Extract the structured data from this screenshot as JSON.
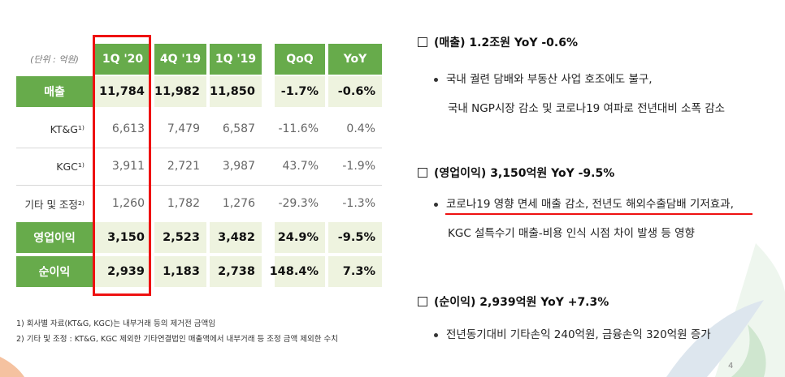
{
  "table": {
    "unit_label": "(단위 : 억원)",
    "headers": [
      "1Q '20",
      "4Q '19",
      "1Q '19",
      "QoQ",
      "YoY"
    ],
    "rows": [
      {
        "label": "매출",
        "values": [
          "11,784",
          "11,982",
          "11,850",
          "-1.7%",
          "-0.6%"
        ]
      },
      {
        "label": "KT&G¹⁾",
        "values": [
          "6,613",
          "7,479",
          "6,587",
          "-11.6%",
          "0.4%"
        ]
      },
      {
        "label": "KGC¹⁾",
        "values": [
          "3,911",
          "2,721",
          "3,987",
          "43.7%",
          "-1.9%"
        ]
      },
      {
        "label": "기타 및 조정²⁾",
        "values": [
          "1,260",
          "1,782",
          "1,276",
          "-29.3%",
          "-1.3%"
        ]
      },
      {
        "label": "영업이익",
        "values": [
          "3,150",
          "2,523",
          "3,482",
          "24.9%",
          "-9.5%"
        ]
      },
      {
        "label": "순이익",
        "values": [
          "2,939",
          "1,183",
          "2,738",
          "148.4%",
          "7.3%"
        ]
      }
    ]
  },
  "footnotes": [
    "1)   회사별 자료(KT&G, KGC)는 내부거래 등의 제거전 금액임",
    "2)   기타 및 조정 : KT&G, KGC 제외한 기타연결법인 매출액에서 내부거래 등 조정 금액 제외한 수치"
  ],
  "sections": [
    {
      "title": "(매출) 1.2조원  YoY -0.6%",
      "lines": [
        "국내 궐련 담배와 부동산 사업 호조에도 불구,",
        "국내 NGP시장 감소 및 코로나19 여파로 전년대비 소폭 감소"
      ]
    },
    {
      "title": "(영업이익) 3,150억원  YoY -9.5%",
      "lines": [
        "코로나19 영향 면세 매출 감소, 전년도 해외수출담배 기저효과,",
        "KGC 설특수기 매출-비용 인식 시점 차이 발생 등 영향"
      ]
    },
    {
      "title": "(순이익) 2,939억원  YoY +7.3%",
      "lines": [
        "전년동기대비 기타손익 240억원, 금융손익 320억원 증가"
      ]
    }
  ],
  "page_number": "4",
  "colors": {
    "green": "#67ab4b",
    "red": "#e11111",
    "highlight": "#eef3df"
  }
}
